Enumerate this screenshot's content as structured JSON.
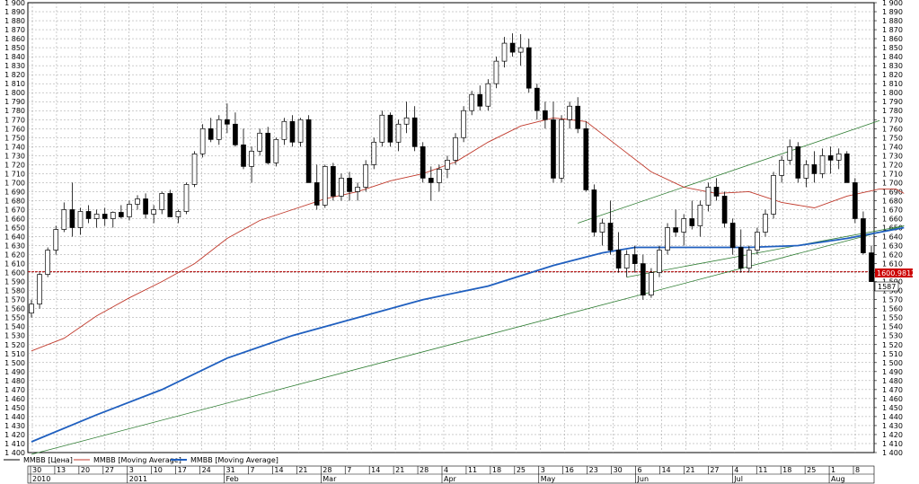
{
  "chart_data": {
    "type": "candlestick",
    "ylim": [
      1400,
      1900
    ],
    "y_step": 10,
    "grid": true,
    "legend_position": "bottom-left",
    "colors": {
      "up_candle": "#ffffff",
      "down_candle": "#000000",
      "ma_short": "#c0392b",
      "ma_long": "#1f5fbf",
      "trendlines": "#2e7d32",
      "horizontal_line": "#b00000",
      "price_tag": "#cc0000",
      "grid": "#9a9a9a"
    },
    "price_line": {
      "value": 1600.98,
      "label": "1600.98129"
    },
    "last_price": {
      "value": 1587,
      "label": "1587"
    },
    "legend": [
      {
        "label": "MMBB [Цена]",
        "color": "#000000"
      },
      {
        "label": "MMBB [Moving Average]",
        "color": "#c0392b"
      },
      {
        "label": "MMBB [Moving Average]",
        "color": "#1f5fbf"
      }
    ],
    "x_day_labels": [
      "30",
      "13",
      "20",
      "27",
      "3",
      "10",
      "17",
      "24",
      "31",
      "7",
      "14",
      "21",
      "28",
      "7",
      "14",
      "21",
      "28",
      "4",
      "11",
      "18",
      "25",
      "3",
      "16",
      "23",
      "30",
      "6",
      "14",
      "21",
      "27",
      "4",
      "11",
      "18",
      "25",
      "1",
      "8"
    ],
    "x_month_labels": [
      "2010",
      "2011",
      "Feb",
      "Mar",
      "Apr",
      "May",
      "Jun",
      "Jul",
      "Aug"
    ],
    "candles": [
      [
        1555,
        1570,
        1550,
        1565
      ],
      [
        1565,
        1600,
        1560,
        1598
      ],
      [
        1598,
        1628,
        1595,
        1625
      ],
      [
        1625,
        1652,
        1620,
        1648
      ],
      [
        1648,
        1678,
        1645,
        1670
      ],
      [
        1670,
        1700,
        1640,
        1650
      ],
      [
        1650,
        1672,
        1642,
        1668
      ],
      [
        1668,
        1675,
        1655,
        1660
      ],
      [
        1660,
        1670,
        1650,
        1665
      ],
      [
        1665,
        1672,
        1652,
        1660
      ],
      [
        1660,
        1668,
        1650,
        1667
      ],
      [
        1667,
        1675,
        1660,
        1662
      ],
      [
        1662,
        1680,
        1658,
        1676
      ],
      [
        1676,
        1686,
        1670,
        1682
      ],
      [
        1682,
        1688,
        1660,
        1665
      ],
      [
        1665,
        1675,
        1655,
        1670
      ],
      [
        1670,
        1690,
        1665,
        1688
      ],
      [
        1688,
        1692,
        1662,
        1662
      ],
      [
        1662,
        1670,
        1655,
        1668
      ],
      [
        1668,
        1700,
        1665,
        1698
      ],
      [
        1698,
        1735,
        1695,
        1732
      ],
      [
        1732,
        1765,
        1728,
        1760
      ],
      [
        1760,
        1772,
        1745,
        1748
      ],
      [
        1748,
        1775,
        1742,
        1770
      ],
      [
        1770,
        1788,
        1755,
        1765
      ],
      [
        1765,
        1778,
        1740,
        1742
      ],
      [
        1742,
        1760,
        1715,
        1718
      ],
      [
        1718,
        1740,
        1700,
        1735
      ],
      [
        1735,
        1760,
        1730,
        1755
      ],
      [
        1755,
        1762,
        1720,
        1722
      ],
      [
        1722,
        1750,
        1718,
        1748
      ],
      [
        1748,
        1772,
        1742,
        1768
      ],
      [
        1768,
        1775,
        1740,
        1745
      ],
      [
        1745,
        1772,
        1740,
        1770
      ],
      [
        1770,
        1775,
        1700,
        1700
      ],
      [
        1700,
        1720,
        1670,
        1675
      ],
      [
        1675,
        1720,
        1672,
        1718
      ],
      [
        1718,
        1722,
        1680,
        1685
      ],
      [
        1685,
        1710,
        1680,
        1705
      ],
      [
        1705,
        1712,
        1680,
        1690
      ],
      [
        1690,
        1700,
        1680,
        1695
      ],
      [
        1695,
        1725,
        1690,
        1720
      ],
      [
        1720,
        1750,
        1715,
        1745
      ],
      [
        1745,
        1780,
        1740,
        1775
      ],
      [
        1775,
        1778,
        1740,
        1745
      ],
      [
        1745,
        1770,
        1735,
        1765
      ],
      [
        1765,
        1790,
        1755,
        1772
      ],
      [
        1772,
        1785,
        1735,
        1740
      ],
      [
        1740,
        1745,
        1700,
        1705
      ],
      [
        1705,
        1718,
        1680,
        1700
      ],
      [
        1700,
        1720,
        1690,
        1715
      ],
      [
        1715,
        1730,
        1705,
        1725
      ],
      [
        1725,
        1755,
        1720,
        1750
      ],
      [
        1750,
        1785,
        1745,
        1780
      ],
      [
        1780,
        1802,
        1775,
        1798
      ],
      [
        1798,
        1808,
        1780,
        1785
      ],
      [
        1785,
        1815,
        1780,
        1810
      ],
      [
        1810,
        1840,
        1805,
        1835
      ],
      [
        1835,
        1862,
        1828,
        1855
      ],
      [
        1855,
        1866,
        1840,
        1845
      ],
      [
        1845,
        1865,
        1830,
        1850
      ],
      [
        1850,
        1860,
        1800,
        1805
      ],
      [
        1805,
        1810,
        1770,
        1780
      ],
      [
        1780,
        1790,
        1760,
        1770
      ],
      [
        1770,
        1790,
        1700,
        1705
      ],
      [
        1705,
        1775,
        1700,
        1770
      ],
      [
        1770,
        1790,
        1760,
        1785
      ],
      [
        1785,
        1795,
        1755,
        1760
      ],
      [
        1760,
        1768,
        1690,
        1692
      ],
      [
        1692,
        1698,
        1640,
        1645
      ],
      [
        1645,
        1660,
        1630,
        1655
      ],
      [
        1655,
        1680,
        1620,
        1625
      ],
      [
        1625,
        1645,
        1600,
        1605
      ],
      [
        1605,
        1625,
        1595,
        1620
      ],
      [
        1620,
        1630,
        1600,
        1610
      ],
      [
        1610,
        1620,
        1570,
        1575
      ],
      [
        1575,
        1605,
        1572,
        1600
      ],
      [
        1600,
        1630,
        1595,
        1625
      ],
      [
        1625,
        1655,
        1620,
        1650
      ],
      [
        1650,
        1670,
        1640,
        1645
      ],
      [
        1645,
        1665,
        1630,
        1660
      ],
      [
        1660,
        1680,
        1648,
        1652
      ],
      [
        1652,
        1680,
        1640,
        1675
      ],
      [
        1675,
        1700,
        1668,
        1695
      ],
      [
        1695,
        1705,
        1680,
        1685
      ],
      [
        1685,
        1690,
        1650,
        1655
      ],
      [
        1655,
        1660,
        1620,
        1628
      ],
      [
        1628,
        1648,
        1600,
        1605
      ],
      [
        1605,
        1630,
        1600,
        1625
      ],
      [
        1625,
        1650,
        1620,
        1645
      ],
      [
        1645,
        1670,
        1640,
        1665
      ],
      [
        1665,
        1712,
        1660,
        1708
      ],
      [
        1708,
        1730,
        1700,
        1725
      ],
      [
        1725,
        1748,
        1720,
        1740
      ],
      [
        1740,
        1745,
        1700,
        1705
      ],
      [
        1705,
        1725,
        1695,
        1720
      ],
      [
        1720,
        1735,
        1700,
        1710
      ],
      [
        1710,
        1738,
        1705,
        1730
      ],
      [
        1730,
        1740,
        1710,
        1725
      ],
      [
        1725,
        1738,
        1715,
        1732
      ],
      [
        1732,
        1735,
        1700,
        1700
      ],
      [
        1700,
        1705,
        1655,
        1660
      ],
      [
        1660,
        1668,
        1620,
        1622
      ],
      [
        1622,
        1630,
        1595,
        1590
      ]
    ],
    "ma_short": [
      [
        0,
        1513
      ],
      [
        4,
        1527
      ],
      [
        8,
        1552
      ],
      [
        12,
        1572
      ],
      [
        16,
        1590
      ],
      [
        20,
        1610
      ],
      [
        24,
        1638
      ],
      [
        28,
        1658
      ],
      [
        32,
        1670
      ],
      [
        36,
        1682
      ],
      [
        40,
        1690
      ],
      [
        44,
        1702
      ],
      [
        48,
        1710
      ],
      [
        52,
        1723
      ],
      [
        56,
        1745
      ],
      [
        60,
        1763
      ],
      [
        64,
        1772
      ],
      [
        68,
        1768
      ],
      [
        72,
        1740
      ],
      [
        76,
        1712
      ],
      [
        80,
        1695
      ],
      [
        84,
        1688
      ],
      [
        88,
        1690
      ],
      [
        92,
        1678
      ],
      [
        96,
        1672
      ],
      [
        100,
        1685
      ],
      [
        104,
        1693
      ],
      [
        106,
        1693
      ],
      [
        107,
        1688
      ]
    ],
    "ma_long": [
      [
        0,
        1412
      ],
      [
        8,
        1442
      ],
      [
        16,
        1470
      ],
      [
        24,
        1505
      ],
      [
        32,
        1530
      ],
      [
        40,
        1550
      ],
      [
        48,
        1570
      ],
      [
        56,
        1585
      ],
      [
        64,
        1608
      ],
      [
        70,
        1622
      ],
      [
        74,
        1628
      ],
      [
        80,
        1628
      ],
      [
        88,
        1628
      ],
      [
        94,
        1630
      ],
      [
        100,
        1638
      ],
      [
        107,
        1650
      ]
    ],
    "trendlines": [
      {
        "from": [
          0,
          1398
        ],
        "to": [
          107,
          1652
        ]
      },
      {
        "from": [
          67,
          1655
        ],
        "to": [
          104,
          1769
        ]
      },
      {
        "from": [
          73,
          1595
        ],
        "to": [
          107,
          1652
        ]
      }
    ]
  }
}
